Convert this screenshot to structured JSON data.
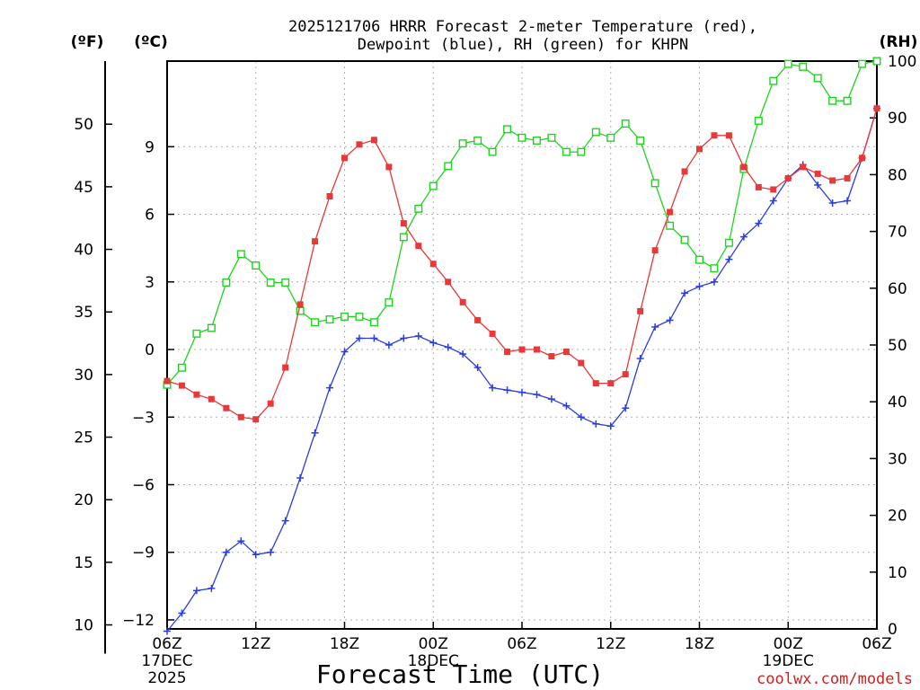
{
  "chart_data": {
    "type": "line",
    "title_line1": "2025121706 HRRR Forecast 2-meter Temperature (red),",
    "title_line2": "Dewpoint (blue), RH (green) for KHPN",
    "xlabel": "Forecast Time (UTC)",
    "credit": "coolwx.com/models",
    "units": {
      "f": "(ºF)",
      "c": "(ºC)",
      "rh": "(RH)"
    },
    "x_range_hours": [
      0,
      48
    ],
    "x_ticks": [
      {
        "hour": 0,
        "label": "06Z",
        "sub1": "17DEC",
        "sub2": "2025"
      },
      {
        "hour": 6,
        "label": "12Z",
        "sub1": "",
        "sub2": ""
      },
      {
        "hour": 12,
        "label": "18Z",
        "sub1": "",
        "sub2": ""
      },
      {
        "hour": 18,
        "label": "00Z",
        "sub1": "18DEC",
        "sub2": ""
      },
      {
        "hour": 24,
        "label": "06Z",
        "sub1": "",
        "sub2": ""
      },
      {
        "hour": 30,
        "label": "12Z",
        "sub1": "",
        "sub2": ""
      },
      {
        "hour": 36,
        "label": "18Z",
        "sub1": "",
        "sub2": ""
      },
      {
        "hour": 42,
        "label": "00Z",
        "sub1": "19DEC",
        "sub2": ""
      },
      {
        "hour": 48,
        "label": "06Z",
        "sub1": "",
        "sub2": ""
      }
    ],
    "ylim_c": [
      -12.4,
      12.8
    ],
    "yticks_c": [
      "−12",
      "−9",
      "−6",
      "−3",
      "0",
      "3",
      "6",
      "9"
    ],
    "yticks_f": [
      "10",
      "15",
      "20",
      "25",
      "30",
      "35",
      "40",
      "45",
      "50"
    ],
    "ylim_rh": [
      0,
      100
    ],
    "yticks_rh": [
      "0",
      "10",
      "20",
      "30",
      "40",
      "50",
      "60",
      "70",
      "80",
      "90",
      "100"
    ],
    "grid": true,
    "colors": {
      "temperature": "#e83838",
      "dewpoint": "#2a3de0",
      "rh": "#1fd41f",
      "credit": "#d02020"
    },
    "series": [
      {
        "name": "Temperature",
        "unit": "C",
        "values": [
          -1.4,
          -1.6,
          -2.0,
          -2.2,
          -2.6,
          -3.0,
          -3.1,
          -2.4,
          -0.8,
          2.0,
          4.8,
          6.8,
          8.5,
          9.1,
          9.3,
          8.1,
          5.6,
          4.6,
          3.8,
          3.0,
          2.1,
          1.3,
          0.7,
          -0.1,
          0.0,
          0.0,
          -0.3,
          -0.1,
          -0.6,
          -1.5,
          -1.5,
          -1.1,
          1.7,
          4.4,
          6.1,
          7.9,
          8.9,
          9.5,
          9.5,
          8.1,
          7.2,
          7.1,
          7.6,
          8.1,
          7.8,
          7.5,
          7.6,
          8.5,
          10.7
        ]
      },
      {
        "name": "Dewpoint",
        "unit": "C",
        "values": [
          -12.5,
          -11.7,
          -10.7,
          -10.6,
          -9.0,
          -8.5,
          -9.1,
          -9.0,
          -7.6,
          -5.7,
          -3.7,
          -1.7,
          -0.1,
          0.5,
          0.5,
          0.2,
          0.5,
          0.6,
          0.3,
          0.1,
          -0.2,
          -0.8,
          -1.7,
          -1.8,
          -1.9,
          -2.0,
          -2.2,
          -2.5,
          -3.0,
          -3.3,
          -3.4,
          -2.6,
          -0.4,
          1.0,
          1.3,
          2.5,
          2.8,
          3.0,
          4.0,
          5.0,
          5.6,
          6.6,
          7.6,
          8.2,
          7.3,
          6.5,
          6.6,
          8.5,
          10.7
        ]
      },
      {
        "name": "RH",
        "unit": "%",
        "values": [
          43,
          46,
          52,
          53,
          61,
          66,
          64,
          61,
          61,
          56,
          54,
          54.5,
          55,
          55,
          54,
          57.5,
          69,
          74,
          78,
          81.5,
          85.5,
          86,
          84,
          88,
          86.5,
          86,
          86.5,
          84,
          84,
          87.5,
          86.5,
          89,
          86,
          78.5,
          71,
          68.5,
          65,
          63.5,
          68,
          81,
          89.5,
          96.5,
          99.5,
          99,
          97,
          93,
          93,
          99.5,
          100
        ]
      }
    ]
  }
}
